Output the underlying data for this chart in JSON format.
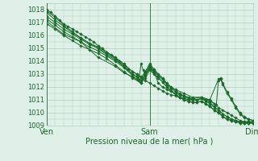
{
  "title": "",
  "xlabel": "Pression niveau de la mer( hPa )",
  "ylabel": "",
  "bg_color": "#dff0e8",
  "grid_color": "#b0cfc0",
  "line_color": "#1a6b2a",
  "ylim": [
    1009.0,
    1018.5
  ],
  "yticks": [
    1009,
    1010,
    1011,
    1012,
    1013,
    1014,
    1015,
    1016,
    1017,
    1018
  ],
  "xlim": [
    0,
    48
  ],
  "xtick_positions": [
    0,
    24,
    48
  ],
  "xtick_labels": [
    "Ven",
    "Sam",
    "Dim"
  ],
  "lines": [
    [
      0.0,
      1018.0,
      1.0,
      1017.8,
      2.0,
      1017.5,
      3.0,
      1017.2,
      4.0,
      1016.9,
      5.0,
      1016.7,
      6.0,
      1016.5,
      7.0,
      1016.3,
      8.0,
      1016.1,
      9.0,
      1015.9,
      10.0,
      1015.7,
      11.0,
      1015.5,
      12.0,
      1015.2,
      13.0,
      1015.0,
      14.0,
      1014.7,
      15.0,
      1014.5,
      16.0,
      1014.2,
      17.0,
      1014.0,
      18.0,
      1013.7,
      19.0,
      1013.4,
      20.0,
      1013.2,
      21.0,
      1013.0,
      22.0,
      1012.8,
      23.0,
      1012.5,
      24.0,
      1012.3,
      25.0,
      1012.1,
      26.0,
      1011.9,
      27.0,
      1011.7,
      28.0,
      1011.5,
      29.0,
      1011.4,
      30.0,
      1011.3,
      31.0,
      1011.2,
      32.0,
      1011.1,
      33.0,
      1011.0,
      34.0,
      1011.0,
      35.0,
      1011.0,
      36.0,
      1011.1,
      37.0,
      1011.0,
      38.0,
      1010.9,
      39.0,
      1010.7,
      40.0,
      1010.4,
      41.0,
      1010.2,
      42.0,
      1010.0,
      43.0,
      1009.8,
      44.0,
      1009.6,
      45.0,
      1009.4,
      46.0,
      1009.3,
      47.0,
      1009.3,
      48.0,
      1009.3
    ],
    [
      0.0,
      1017.5,
      2.0,
      1017.0,
      4.0,
      1016.5,
      6.0,
      1016.1,
      8.0,
      1015.7,
      10.0,
      1015.3,
      12.0,
      1015.0,
      14.0,
      1014.6,
      16.0,
      1014.2,
      18.0,
      1013.6,
      20.0,
      1013.0,
      21.0,
      1012.8,
      22.0,
      1012.5,
      23.0,
      1013.0,
      24.0,
      1013.5,
      25.0,
      1013.2,
      26.0,
      1012.9,
      27.0,
      1012.6,
      28.0,
      1012.2,
      29.0,
      1011.9,
      30.0,
      1011.6,
      31.0,
      1011.4,
      32.0,
      1011.2,
      33.0,
      1011.1,
      34.0,
      1011.0,
      35.0,
      1011.0,
      36.0,
      1011.1,
      37.0,
      1010.9,
      38.0,
      1010.7,
      39.0,
      1010.4,
      40.0,
      1010.2,
      41.0,
      1009.9,
      42.0,
      1009.7,
      43.0,
      1009.5,
      44.0,
      1009.4,
      45.0,
      1009.3,
      46.0,
      1009.2,
      47.0,
      1009.2,
      48.0,
      1009.2
    ],
    [
      0.0,
      1017.8,
      2.0,
      1017.2,
      4.0,
      1016.7,
      6.0,
      1016.2,
      8.0,
      1015.8,
      10.0,
      1015.4,
      12.0,
      1015.1,
      14.0,
      1014.7,
      16.0,
      1014.3,
      18.0,
      1013.8,
      20.0,
      1013.2,
      21.0,
      1013.0,
      22.0,
      1012.7,
      23.0,
      1013.2,
      24.0,
      1013.8,
      25.0,
      1013.4,
      26.0,
      1013.0,
      27.0,
      1012.7,
      28.0,
      1012.3,
      29.0,
      1012.0,
      30.0,
      1011.7,
      31.0,
      1011.5,
      32.0,
      1011.3,
      33.0,
      1011.2,
      34.0,
      1011.1,
      35.0,
      1011.0,
      36.0,
      1011.1,
      37.0,
      1011.0,
      38.0,
      1010.8,
      39.0,
      1010.5,
      40.0,
      1010.2,
      41.0,
      1009.9,
      42.0,
      1009.7,
      43.0,
      1009.5,
      44.0,
      1009.4,
      45.0,
      1009.3,
      46.0,
      1009.3,
      47.0,
      1009.3,
      48.0,
      1009.3
    ],
    [
      0.0,
      1017.3,
      2.0,
      1016.8,
      4.0,
      1016.3,
      6.0,
      1015.9,
      8.0,
      1015.5,
      10.0,
      1015.1,
      12.0,
      1014.8,
      14.0,
      1014.4,
      16.0,
      1014.0,
      18.0,
      1013.5,
      20.0,
      1012.9,
      21.0,
      1012.6,
      22.0,
      1012.3,
      23.0,
      1012.9,
      24.0,
      1013.4,
      25.0,
      1013.1,
      26.0,
      1012.7,
      27.0,
      1012.4,
      28.0,
      1012.0,
      29.0,
      1011.7,
      30.0,
      1011.4,
      31.0,
      1011.2,
      32.0,
      1011.0,
      33.0,
      1010.9,
      34.0,
      1010.8,
      35.0,
      1010.8,
      36.0,
      1010.9,
      37.0,
      1010.7,
      38.0,
      1010.5,
      39.0,
      1010.2,
      40.0,
      1010.0,
      41.0,
      1009.7,
      42.0,
      1009.5,
      43.0,
      1009.4,
      44.0,
      1009.3,
      45.0,
      1009.2,
      46.0,
      1009.2,
      47.0,
      1009.2,
      48.0,
      1009.2
    ],
    [
      0.0,
      1016.9,
      2.0,
      1016.5,
      4.0,
      1016.0,
      6.0,
      1015.6,
      8.0,
      1015.2,
      10.0,
      1014.9,
      12.0,
      1014.6,
      14.0,
      1014.2,
      16.0,
      1013.7,
      18.0,
      1013.2,
      20.0,
      1012.7,
      22.0,
      1012.3,
      23.0,
      1012.7,
      24.0,
      1013.3,
      25.0,
      1013.0,
      26.0,
      1012.7,
      27.0,
      1012.4,
      28.0,
      1012.0,
      29.0,
      1011.7,
      30.0,
      1011.4,
      31.0,
      1011.2,
      32.0,
      1011.0,
      33.0,
      1010.9,
      34.0,
      1010.8,
      35.0,
      1010.8,
      36.0,
      1010.9,
      37.0,
      1010.7,
      38.0,
      1010.5,
      39.0,
      1010.2,
      40.0,
      1010.0,
      41.0,
      1009.7,
      42.0,
      1009.5,
      43.0,
      1009.4,
      44.0,
      1009.3,
      45.0,
      1009.2,
      46.0,
      1009.2,
      47.0,
      1009.2,
      48.0,
      1009.2
    ],
    [
      0.0,
      1017.1,
      4.0,
      1016.1,
      8.0,
      1015.5,
      12.0,
      1014.3,
      16.0,
      1013.6,
      18.0,
      1013.1,
      20.0,
      1012.8,
      21.5,
      1012.5,
      22.0,
      1013.8,
      22.5,
      1013.3,
      23.0,
      1012.9,
      24.0,
      1013.6,
      25.0,
      1013.2,
      26.0,
      1012.3,
      27.0,
      1012.0,
      28.0,
      1011.8,
      30.0,
      1011.5,
      32.0,
      1011.3,
      34.0,
      1011.1,
      36.0,
      1011.2,
      38.0,
      1011.0,
      39.5,
      1010.6,
      40.0,
      1012.5,
      40.5,
      1012.6,
      41.0,
      1012.2,
      42.0,
      1011.5,
      43.0,
      1011.0,
      44.0,
      1010.4,
      45.0,
      1009.9,
      46.0,
      1009.6,
      47.0,
      1009.5,
      48.0,
      1009.4
    ],
    [
      0.0,
      1017.9,
      2.0,
      1017.4,
      4.0,
      1016.8,
      6.0,
      1016.3,
      8.0,
      1015.8,
      10.0,
      1015.4,
      12.0,
      1015.0,
      14.0,
      1014.5,
      16.0,
      1014.1,
      18.0,
      1013.6,
      20.0,
      1013.0,
      21.0,
      1012.8,
      22.0,
      1012.5,
      23.0,
      1013.1,
      24.0,
      1013.7,
      25.0,
      1013.3,
      26.0,
      1012.9,
      27.0,
      1012.6,
      28.0,
      1012.2,
      30.0,
      1011.8,
      32.0,
      1011.5,
      34.0,
      1011.2,
      36.0,
      1011.2,
      38.0,
      1011.0,
      40.0,
      1012.6,
      40.5,
      1012.7,
      41.0,
      1012.3,
      42.0,
      1011.6,
      43.0,
      1011.1,
      44.0,
      1010.5,
      45.0,
      1010.0,
      46.0,
      1009.7,
      47.0,
      1009.5,
      48.0,
      1009.4
    ]
  ]
}
